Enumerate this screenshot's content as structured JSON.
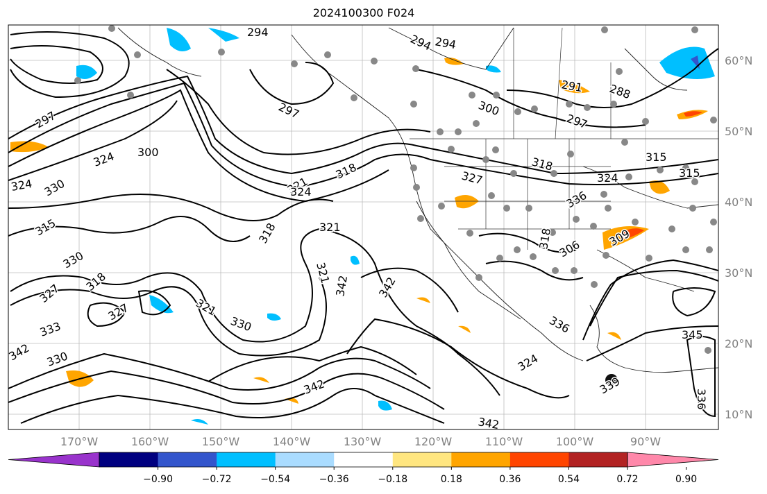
{
  "title": "2024100300 F024",
  "lat_labels": [
    "60°N",
    "50°N",
    "40°N",
    "30°N",
    "20°N",
    "10°N"
  ],
  "lon_labels": [
    "170°W",
    "160°W",
    "150°W",
    "140°W",
    "130°W",
    "120°W",
    "110°W",
    "100°W",
    "90°W"
  ],
  "contour_labels": [
    "294",
    "294",
    "294",
    "297",
    "297",
    "297",
    "291",
    "288",
    "300",
    "300",
    "318",
    "321",
    "321",
    "324",
    "324",
    "330",
    "315",
    "318",
    "321",
    "324",
    "315",
    "318",
    "324",
    "327",
    "336",
    "330",
    "327",
    "333",
    "330",
    "321",
    "330",
    "342",
    "342",
    "342",
    "345",
    "339",
    "336",
    "309",
    "315",
    "306",
    "318",
    "327",
    "324",
    "318",
    "342",
    "342",
    "336"
  ],
  "colorbar": {
    "colors": [
      "#9933cc",
      "#000080",
      "#3355cc",
      "#00bfff",
      "#aadcff",
      "#ffffff",
      "#ffe680",
      "#ffa500",
      "#ff4500",
      "#b22222",
      "#ff88aa"
    ],
    "ticks": [
      "−0.90",
      "−0.72",
      "−0.54",
      "−0.36",
      "−0.18",
      "0.18",
      "0.36",
      "0.54",
      "0.72",
      "0.90"
    ]
  }
}
